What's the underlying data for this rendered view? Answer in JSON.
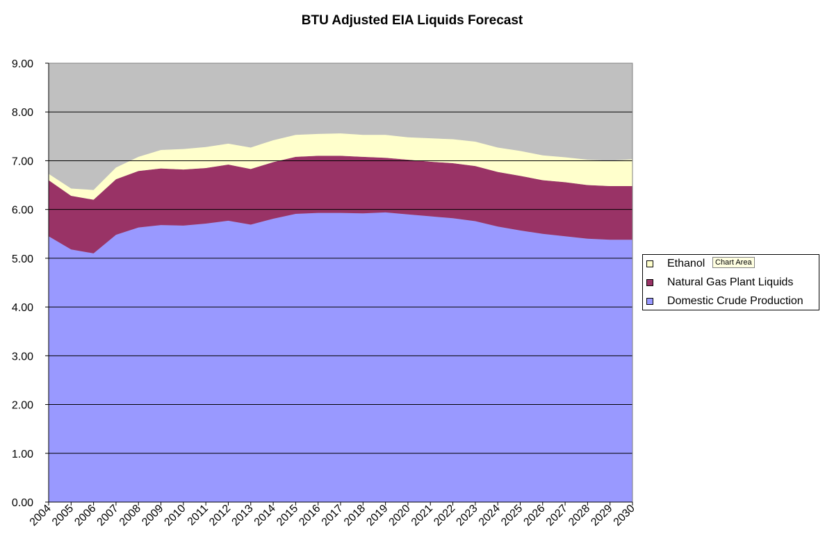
{
  "chart_data": {
    "type": "area",
    "stacked": true,
    "title": "BTU Adjusted EIA Liquids Forecast",
    "xlabel": "",
    "ylabel": "",
    "ylim": [
      0,
      9
    ],
    "yticks": [
      "0.00",
      "1.00",
      "2.00",
      "3.00",
      "4.00",
      "5.00",
      "6.00",
      "7.00",
      "8.00",
      "9.00"
    ],
    "grid": true,
    "legend_position": "right",
    "plot_background": "#c0c0c0",
    "categories": [
      "2004",
      "2005",
      "2006",
      "2007",
      "2008",
      "2009",
      "2010",
      "2011",
      "2012",
      "2013",
      "2014",
      "2015",
      "2016",
      "2017",
      "2018",
      "2019",
      "2020",
      "2021",
      "2022",
      "2023",
      "2024",
      "2025",
      "2026",
      "2027",
      "2028",
      "2029",
      "2030"
    ],
    "series": [
      {
        "name": "Domestic Crude Production",
        "color": "#9999ff",
        "values": [
          5.45,
          5.18,
          5.1,
          5.48,
          5.63,
          5.68,
          5.67,
          5.71,
          5.77,
          5.69,
          5.81,
          5.91,
          5.93,
          5.93,
          5.92,
          5.94,
          5.9,
          5.86,
          5.82,
          5.76,
          5.65,
          5.57,
          5.5,
          5.45,
          5.4,
          5.38,
          5.38
        ]
      },
      {
        "name": "Natural Gas Plant Liquids",
        "color": "#993366",
        "values": [
          1.15,
          1.1,
          1.1,
          1.14,
          1.16,
          1.16,
          1.15,
          1.14,
          1.15,
          1.14,
          1.16,
          1.17,
          1.17,
          1.17,
          1.16,
          1.12,
          1.12,
          1.12,
          1.13,
          1.13,
          1.12,
          1.12,
          1.1,
          1.11,
          1.1,
          1.1,
          1.1
        ]
      },
      {
        "name": "Ethanol",
        "color": "#ffffcc",
        "values": [
          0.13,
          0.15,
          0.2,
          0.24,
          0.29,
          0.38,
          0.42,
          0.43,
          0.43,
          0.44,
          0.45,
          0.45,
          0.45,
          0.46,
          0.45,
          0.47,
          0.46,
          0.48,
          0.49,
          0.5,
          0.5,
          0.51,
          0.51,
          0.51,
          0.52,
          0.52,
          0.55
        ]
      }
    ]
  },
  "legend": {
    "items": [
      {
        "label": "Ethanol",
        "color": "#ffffcc"
      },
      {
        "label": "Natural Gas Plant Liquids",
        "color": "#993366"
      },
      {
        "label": "Domestic Crude Production",
        "color": "#9999ff"
      }
    ]
  },
  "tooltip": {
    "text": "Chart Area"
  }
}
